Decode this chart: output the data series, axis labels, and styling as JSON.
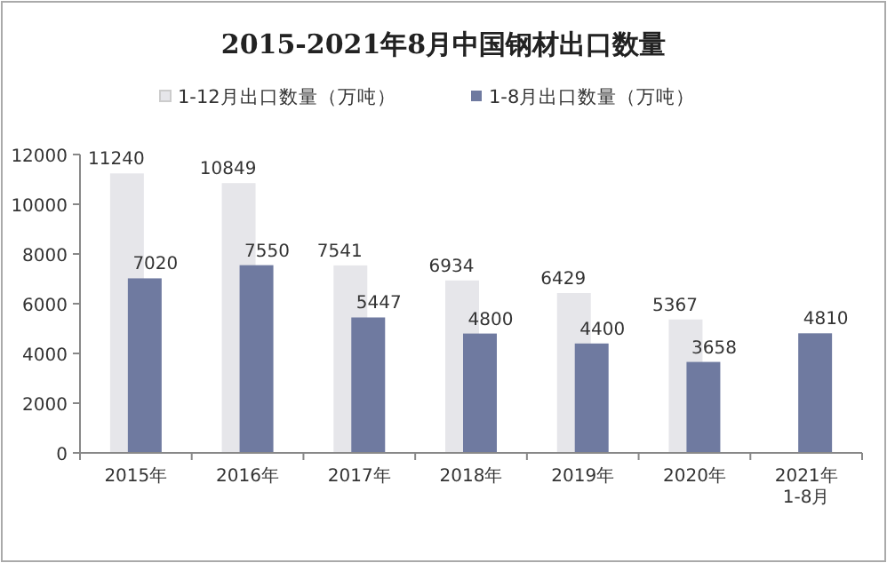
{
  "chart_data": {
    "type": "bar",
    "title": "2015-2021年8月中国钢材出口数量",
    "categories": [
      "2015年",
      "2016年",
      "2017年",
      "2018年",
      "2019年",
      "2020年",
      "2021年\n1-8月"
    ],
    "series": [
      {
        "name": "1-12月出口数量（万吨）",
        "color": "#e6e6ea",
        "values": [
          11240,
          10849,
          7541,
          6934,
          6429,
          5367,
          null
        ]
      },
      {
        "name": "1-8月出口数量（万吨）",
        "color": "#6f7aa0",
        "values": [
          7020,
          7550,
          5447,
          4800,
          4400,
          3658,
          4810
        ]
      }
    ],
    "ylim": [
      0,
      12000
    ],
    "yticks": [
      0,
      2000,
      4000,
      6000,
      8000,
      10000,
      12000
    ],
    "legend": "top",
    "data_labels": true,
    "grid": false
  }
}
